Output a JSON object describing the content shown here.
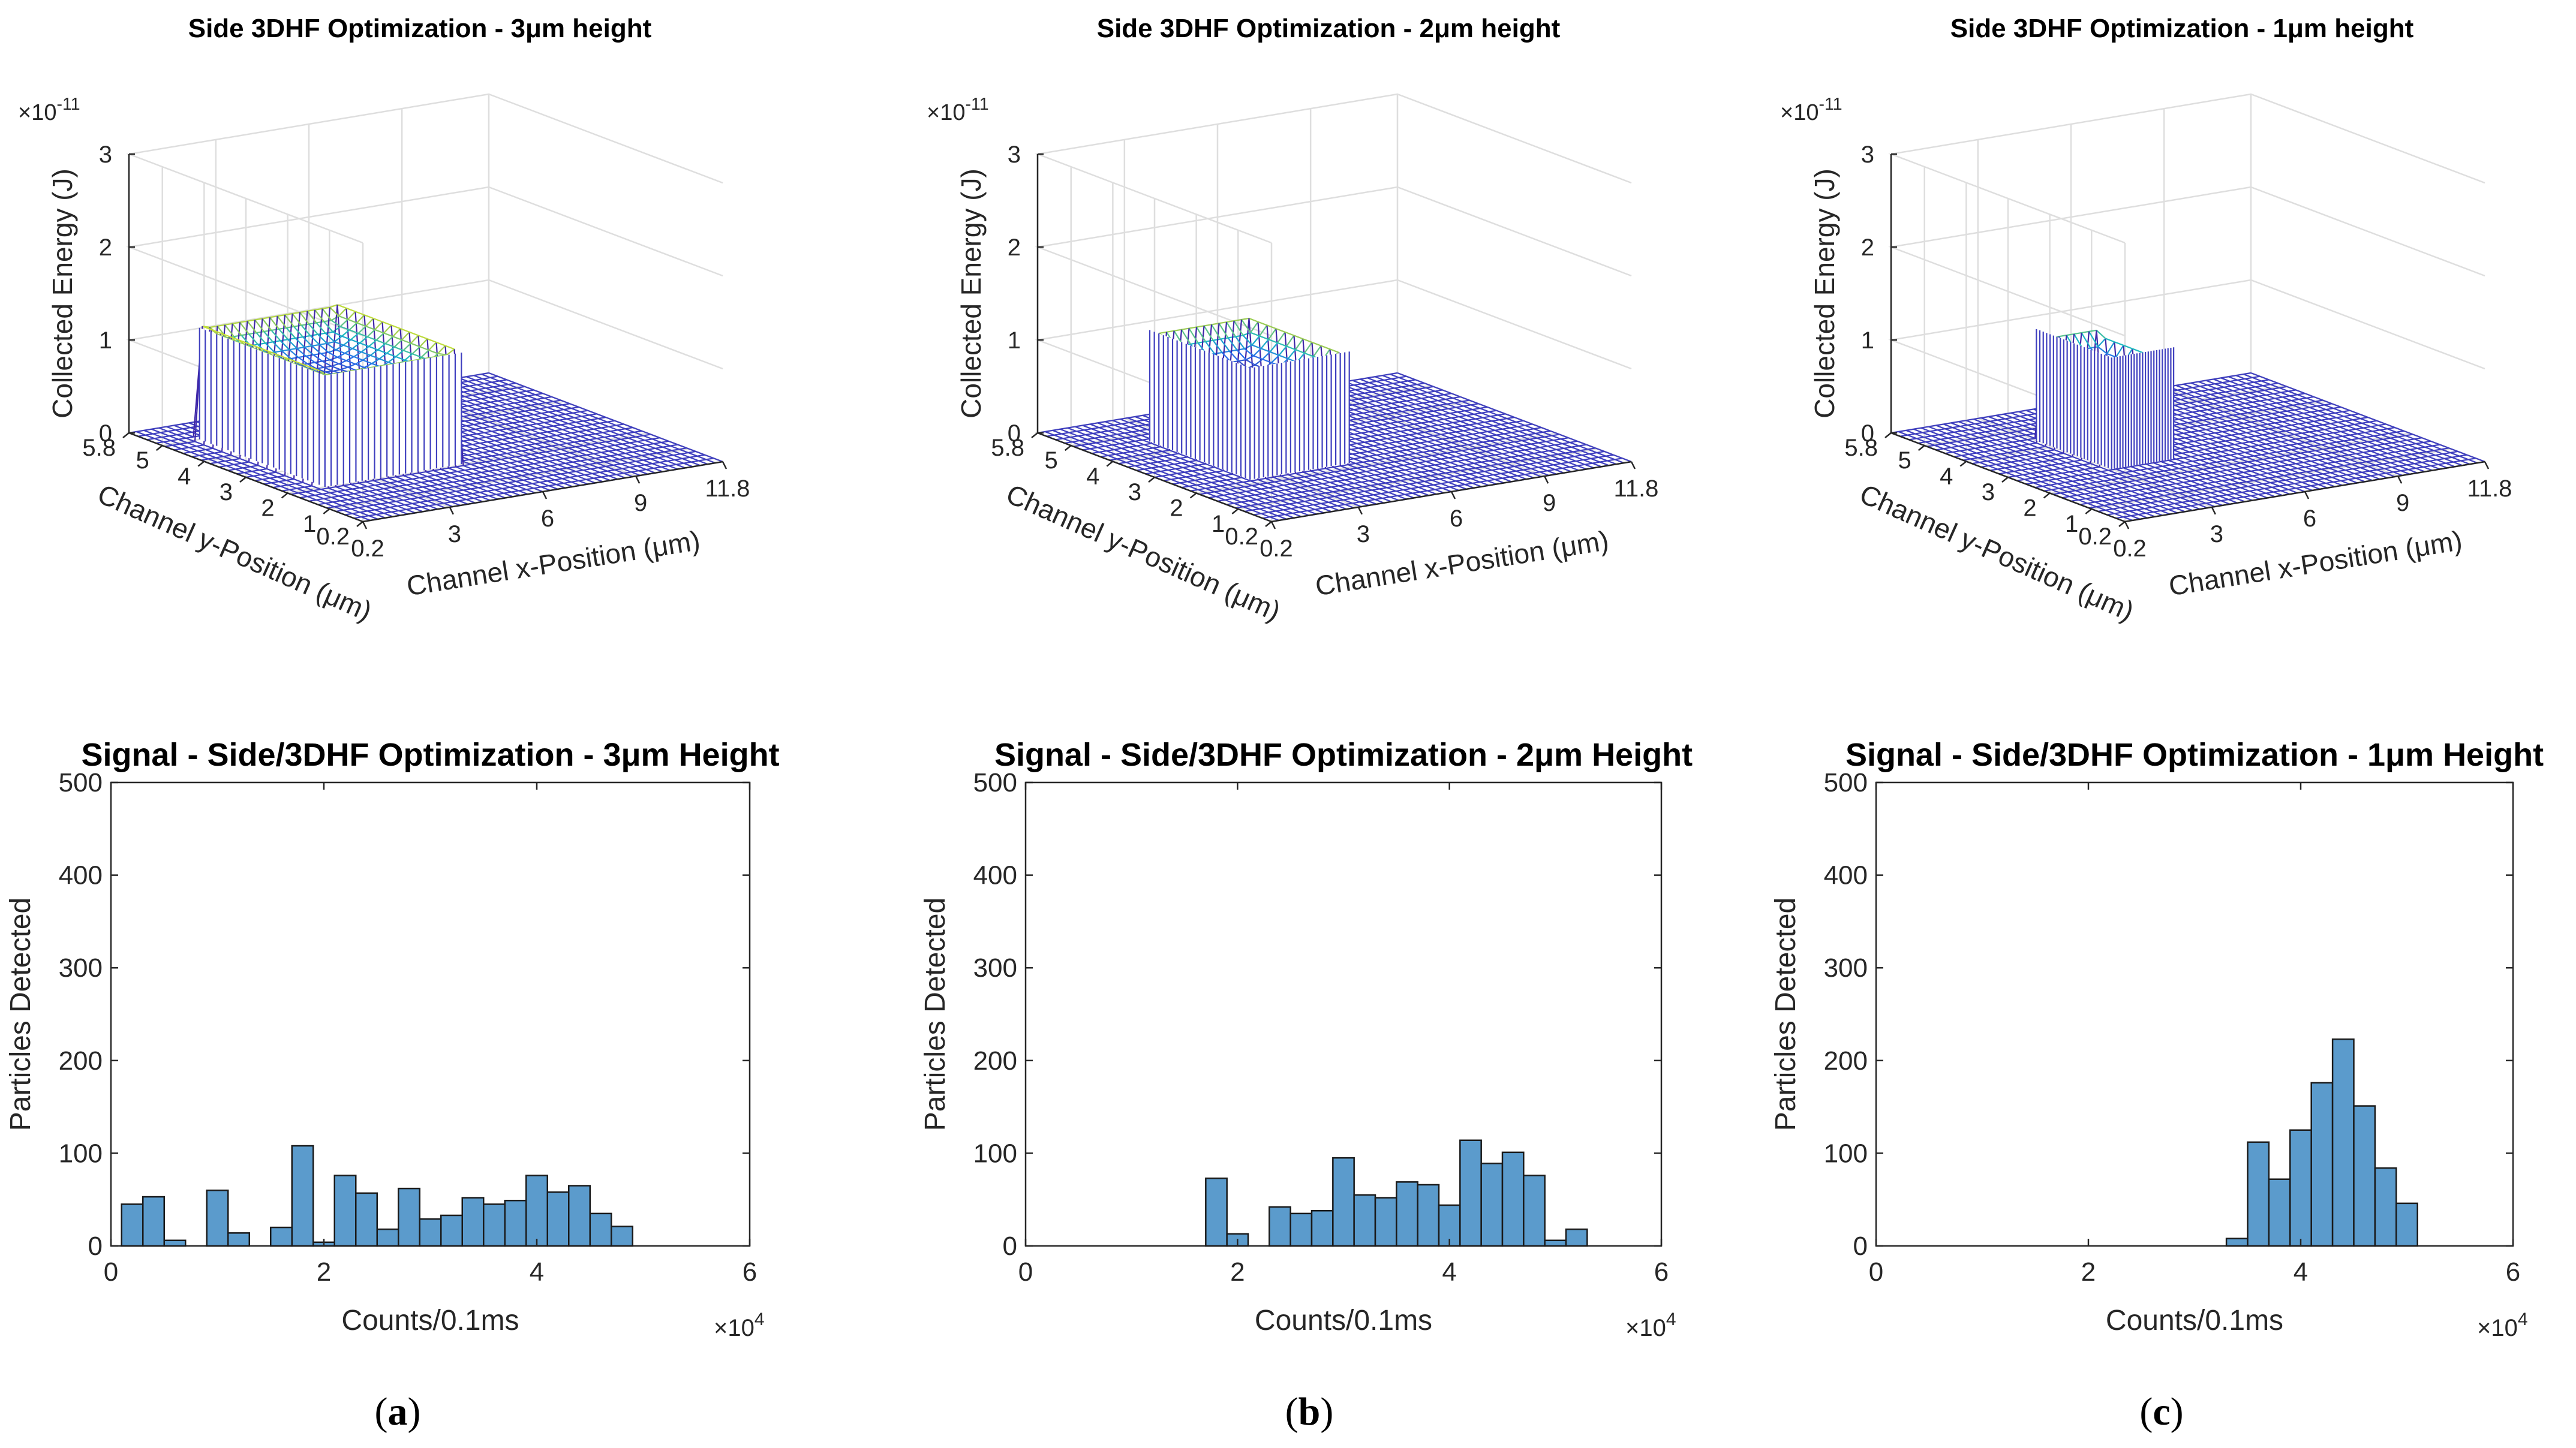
{
  "figure": {
    "panel_labels": [
      "(a)",
      "(b)",
      "(c)"
    ],
    "panel_label_letters": [
      "a",
      "b",
      "c"
    ]
  },
  "chart_data": [
    {
      "type": "surface",
      "title": "Side 3DHF Optimization - 3μm height",
      "xlabel": "Channel x-Position (μm)",
      "ylabel": "Channel y-Position (μm)",
      "zlabel": "Collected Energy (J)",
      "z_exponent_label": "×10",
      "z_exponent": "-11",
      "xticks": [
        "0.2",
        "3",
        "6",
        "9",
        "11.8"
      ],
      "yticks": [
        "0.2",
        "1",
        "2",
        "3",
        "4",
        "5",
        "5.8"
      ],
      "zticks": [
        "0",
        "1",
        "2",
        "3"
      ],
      "xlim": [
        0.2,
        11.8
      ],
      "ylim": [
        0.2,
        5.8
      ],
      "zlim": [
        0,
        3
      ],
      "peak": {
        "x_range": [
          1.4,
          5.8
        ],
        "y_range": [
          2.0,
          5.0
        ],
        "height_edge": 1.05,
        "height_ridge": 1.25,
        "dip": 0.9
      }
    },
    {
      "type": "surface",
      "title": "Side 3DHF Optimization - 2μm height",
      "xlabel": "Channel x-Position (μm)",
      "ylabel": "Channel y-Position (μm)",
      "zlabel": "Collected Energy (J)",
      "z_exponent_label": "×10",
      "z_exponent": "-11",
      "xticks": [
        "0.2",
        "3",
        "6",
        "9",
        "11.8"
      ],
      "yticks": [
        "0.2",
        "1",
        "2",
        "3",
        "4",
        "5",
        "5.8"
      ],
      "zticks": [
        "0",
        "1",
        "2",
        "3"
      ],
      "xlim": [
        0.2,
        11.8
      ],
      "ylim": [
        0.2,
        5.8
      ],
      "zlim": [
        0,
        3
      ],
      "peak": {
        "x_range": [
          2.2,
          5.4
        ],
        "y_range": [
          2.2,
          4.6
        ],
        "height_edge": 1.05,
        "height_ridge": 1.25,
        "dip": 0.85
      }
    },
    {
      "type": "surface",
      "title": "Side 3DHF Optimization - 1μm height",
      "xlabel": "Channel x-Position (μm)",
      "ylabel": "Channel y-Position (μm)",
      "zlabel": "Collected Energy (J)",
      "z_exponent_label": "×10",
      "z_exponent": "-11",
      "xticks": [
        "0.2",
        "3",
        "6",
        "9",
        "11.8"
      ],
      "yticks": [
        "0.2",
        "1",
        "2",
        "3",
        "4",
        "5",
        "5.8"
      ],
      "zticks": [
        "0",
        "1",
        "2",
        "3"
      ],
      "xlim": [
        0.2,
        11.8
      ],
      "ylim": [
        0.2,
        5.8
      ],
      "zlim": [
        0,
        3
      ],
      "peak": {
        "x_range": [
          3.0,
          5.0
        ],
        "y_range": [
          2.6,
          4.4
        ],
        "height_edge": 1.05,
        "height_ridge": 1.2,
        "dip": 0.85
      }
    },
    {
      "type": "bar",
      "title": "Signal - Side/3DHF Optimization - 3μm Height",
      "xlabel": "Counts/0.1ms",
      "ylabel": "Particles Detected",
      "x_exponent_label": "×10",
      "x_exponent": "4",
      "xlim": [
        0,
        6
      ],
      "ylim": [
        0,
        500
      ],
      "xticks": [
        "0",
        "2",
        "4",
        "6"
      ],
      "yticks": [
        "0",
        "100",
        "200",
        "300",
        "400",
        "500"
      ],
      "bin_width": 0.2,
      "bin_starts": [
        0.1,
        0.3,
        0.5,
        0.9,
        1.1,
        1.5,
        1.7,
        1.9,
        2.1,
        2.3,
        2.5,
        2.7,
        2.9,
        3.1,
        3.3,
        3.5,
        3.7,
        3.9,
        4.1,
        4.3,
        4.5,
        4.7
      ],
      "values": [
        45,
        53,
        6,
        60,
        14,
        20,
        108,
        4,
        76,
        57,
        18,
        62,
        29,
        33,
        52,
        45,
        49,
        76,
        58,
        65,
        35,
        21
      ]
    },
    {
      "type": "bar",
      "title": "Signal - Side/3DHF Optimization - 2μm Height",
      "xlabel": "Counts/0.1ms",
      "ylabel": "Particles Detected",
      "x_exponent_label": "×10",
      "x_exponent": "4",
      "xlim": [
        0,
        6
      ],
      "ylim": [
        0,
        500
      ],
      "xticks": [
        "0",
        "2",
        "4",
        "6"
      ],
      "yticks": [
        "0",
        "100",
        "200",
        "300",
        "400",
        "500"
      ],
      "bin_width": 0.2,
      "bin_starts": [
        1.7,
        1.9,
        2.3,
        2.5,
        2.7,
        2.9,
        3.1,
        3.3,
        3.5,
        3.7,
        3.9,
        4.1,
        4.3,
        4.5,
        4.7,
        4.9,
        5.1
      ],
      "values": [
        73,
        13,
        42,
        35,
        38,
        95,
        55,
        52,
        69,
        66,
        44,
        114,
        89,
        101,
        76,
        6,
        18
      ]
    },
    {
      "type": "bar",
      "title": "Signal - Side/3DHF Optimization - 1μm Height",
      "xlabel": "Counts/0.1ms",
      "ylabel": "Particles Detected",
      "x_exponent_label": "×10",
      "x_exponent": "4",
      "xlim": [
        0,
        6
      ],
      "ylim": [
        0,
        500
      ],
      "xticks": [
        "0",
        "2",
        "4",
        "6"
      ],
      "yticks": [
        "0",
        "100",
        "200",
        "300",
        "400",
        "500"
      ],
      "bin_width": 0.2,
      "bin_starts": [
        3.3,
        3.5,
        3.7,
        3.9,
        4.1,
        4.3,
        4.5,
        4.7,
        4.9
      ],
      "values": [
        8,
        112,
        72,
        125,
        176,
        223,
        151,
        84,
        46
      ]
    }
  ],
  "colors": {
    "bar_fill": "#5B9BCC",
    "bar_edge": "#1a1a1a",
    "mesh_base": "#3F3FBF",
    "axis": "#262626",
    "grid": "#DEDEDE"
  }
}
